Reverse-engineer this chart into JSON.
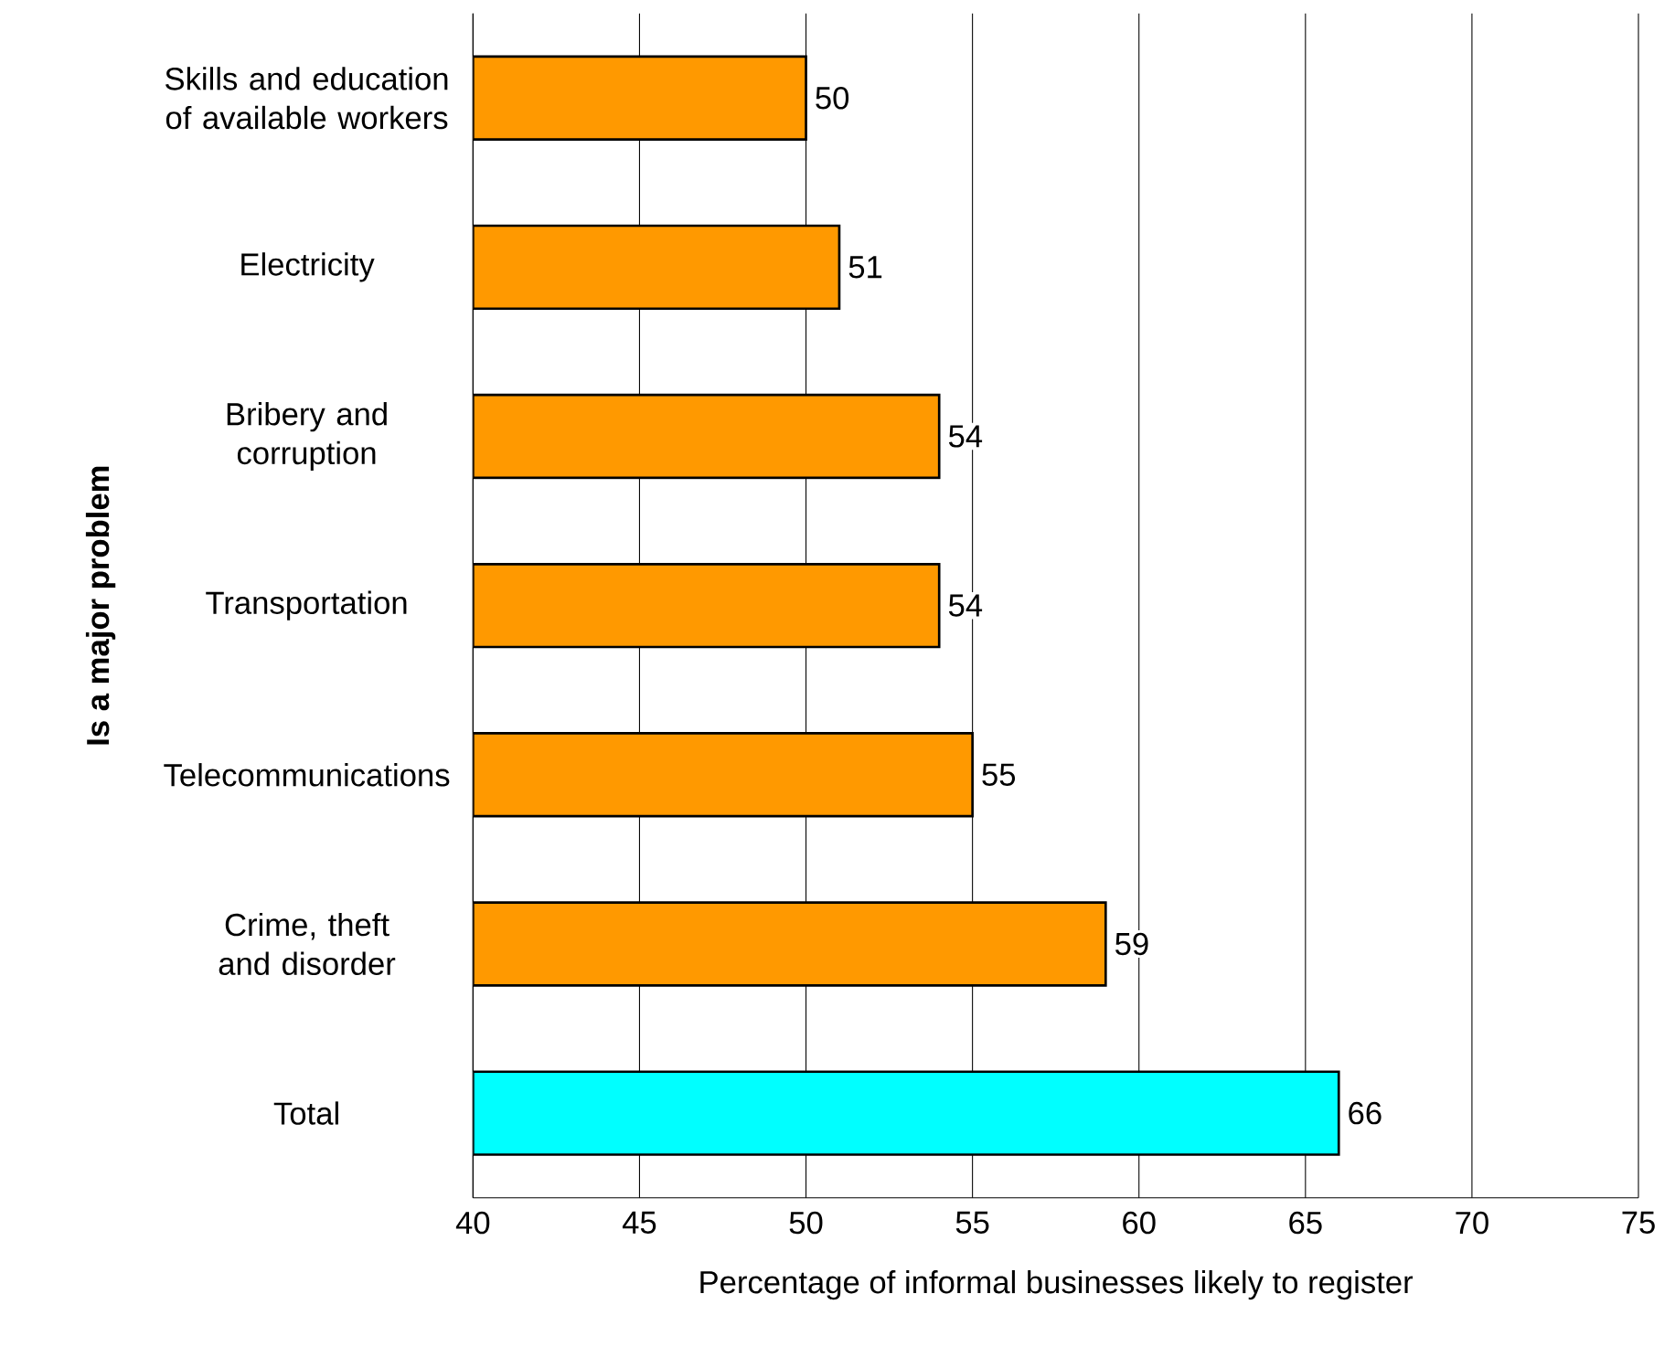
{
  "chart_data": {
    "type": "bar",
    "orientation": "horizontal",
    "categories": [
      "Skills and education of available workers",
      "Electricity",
      "Bribery and corruption",
      "Transportation",
      "Telecommunications",
      "Crime, theft and disorder",
      "Total"
    ],
    "values": [
      50,
      51,
      54,
      54,
      55,
      59,
      66
    ],
    "colors": [
      "#ff9900",
      "#ff9900",
      "#ff9900",
      "#ff9900",
      "#ff9900",
      "#ff9900",
      "#00ffff"
    ],
    "xlim": [
      40,
      75
    ],
    "xticks": [
      40,
      45,
      50,
      55,
      60,
      65,
      70,
      75
    ],
    "xlabel": "Percentage of informal businesses likely to register",
    "ylabel": "Is a major problem",
    "grid": "x",
    "data_labels": true
  }
}
